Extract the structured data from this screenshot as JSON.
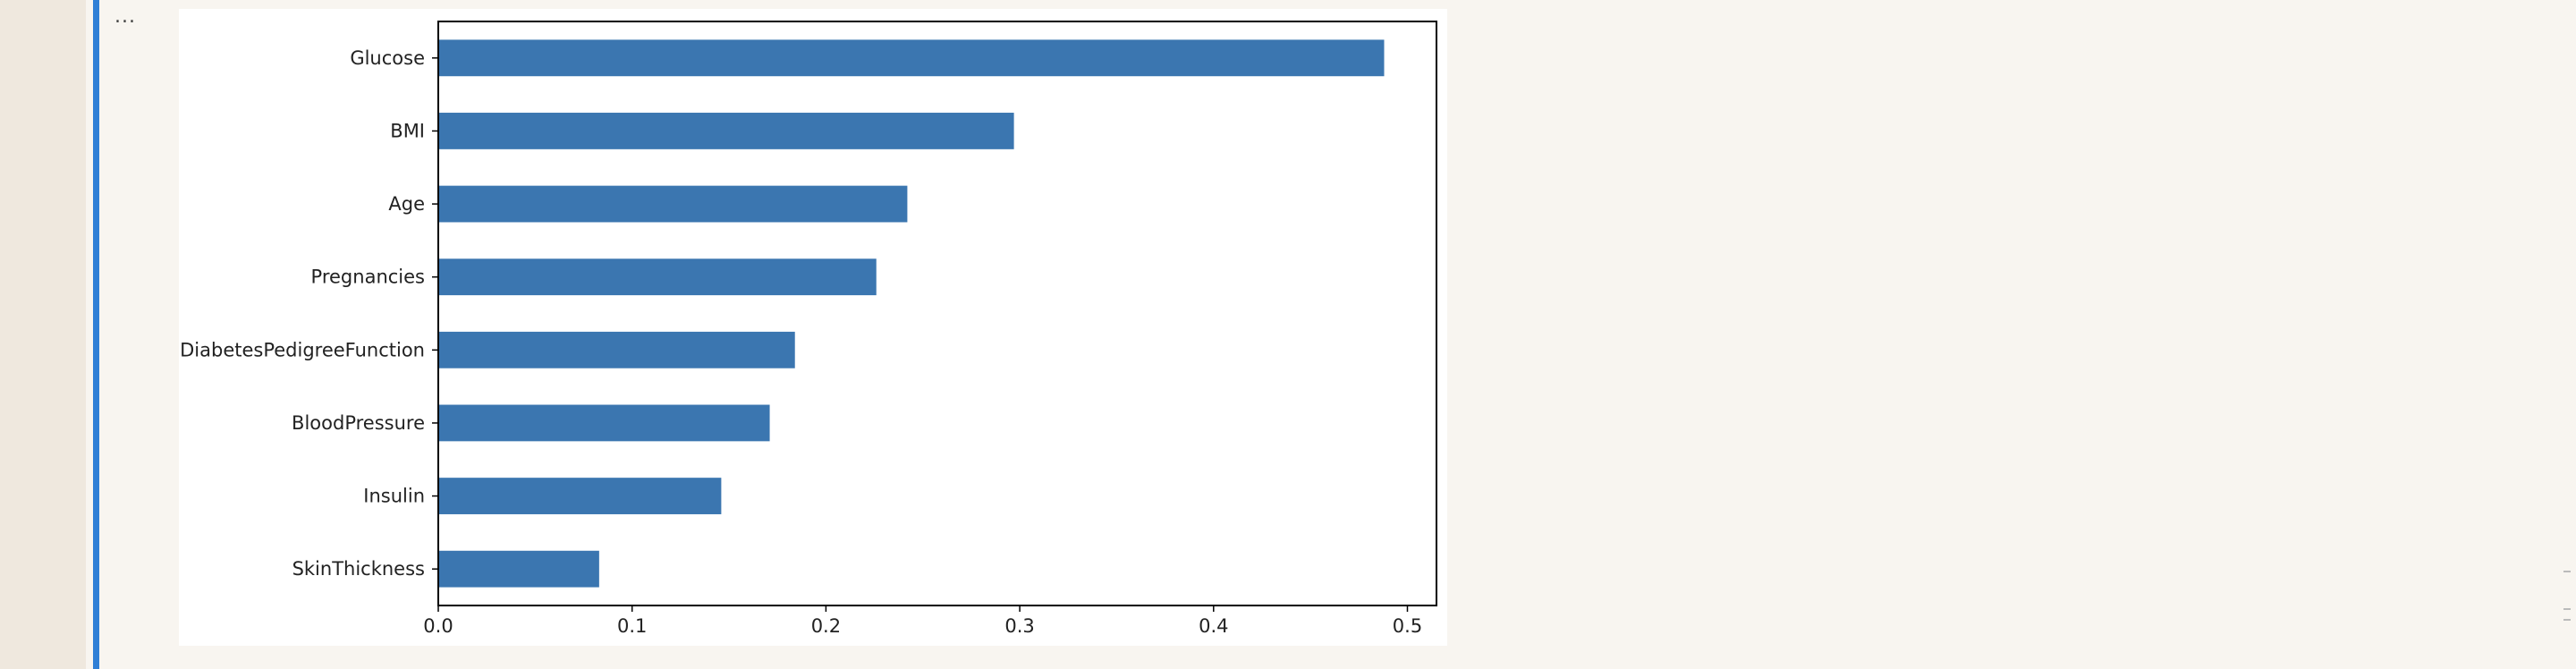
{
  "notebook": {
    "collapse_indicator": "..."
  },
  "colors": {
    "bar": "#3b76b0",
    "axis": "#000000",
    "cell_selected": "#2f7fd6"
  },
  "chart_data": {
    "type": "bar",
    "orientation": "horizontal",
    "categories": [
      "Glucose",
      "BMI",
      "Age",
      "Pregnancies",
      "DiabetesPedigreeFunction",
      "BloodPressure",
      "Insulin",
      "SkinThickness"
    ],
    "values": [
      0.488,
      0.297,
      0.242,
      0.226,
      0.184,
      0.171,
      0.146,
      0.083
    ],
    "xlim": [
      0,
      0.515
    ],
    "xticks": [
      0.0,
      0.1,
      0.2,
      0.3,
      0.4,
      0.5
    ],
    "xtick_labels": [
      "0.0",
      "0.1",
      "0.2",
      "0.3",
      "0.4",
      "0.5"
    ],
    "title": "",
    "xlabel": "",
    "ylabel": "",
    "grid": false,
    "legend": false
  }
}
